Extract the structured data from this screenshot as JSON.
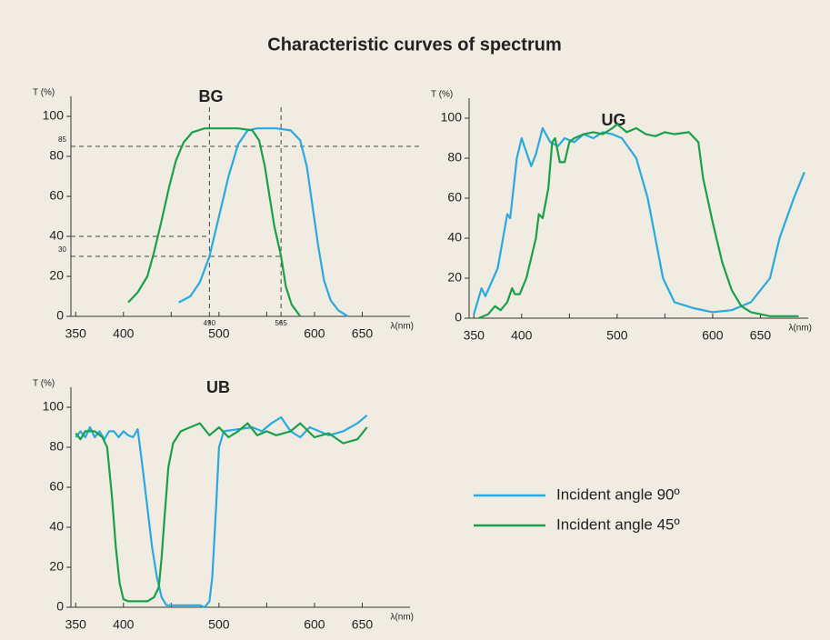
{
  "title": "Characteristic curves of spectrum",
  "chart_data": [
    {
      "type": "line",
      "title": "BG",
      "xlabel": "λ(nm)",
      "ylabel": "T (%)",
      "xlim": [
        345,
        700
      ],
      "ylim": [
        0,
        110
      ],
      "xticks": [
        350,
        400,
        500,
        600,
        650
      ],
      "xminor_ticks": [
        450,
        550
      ],
      "yticks": [
        0,
        20,
        40,
        60,
        80,
        100
      ],
      "reference_lines": [
        {
          "axis": "x",
          "value": 490,
          "printed": true
        },
        {
          "axis": "x",
          "value": 565,
          "printed": true
        },
        {
          "axis": "y",
          "value": 85,
          "printed": true,
          "x_end": 710
        },
        {
          "axis": "y",
          "value": 40,
          "printed": false,
          "x_end": 490
        },
        {
          "axis": "y",
          "value": 30,
          "printed": true,
          "x_end": 565
        }
      ],
      "series": [
        {
          "name": "Incident angle 90º",
          "color": "#29a9e0",
          "x": [
            458,
            470,
            480,
            490,
            500,
            510,
            520,
            530,
            540,
            560,
            575,
            585,
            592,
            598,
            604,
            610,
            617,
            625,
            635
          ],
          "values": [
            7,
            10,
            17,
            30,
            50,
            70,
            86,
            93,
            94,
            94,
            93,
            88,
            75,
            55,
            35,
            18,
            8,
            3,
            0
          ]
        },
        {
          "name": "Incident angle 45º",
          "color": "#1aa049",
          "x": [
            405,
            415,
            425,
            432,
            440,
            448,
            455,
            463,
            472,
            485,
            520,
            535,
            542,
            548,
            553,
            558,
            565,
            570,
            576,
            585
          ],
          "values": [
            7,
            12,
            20,
            32,
            48,
            65,
            78,
            87,
            92,
            94,
            94,
            93,
            88,
            75,
            60,
            45,
            30,
            15,
            6,
            0
          ]
        }
      ]
    },
    {
      "type": "line",
      "title": "UG",
      "xlabel": "λ(nm)",
      "ylabel": "T (%)",
      "xlim": [
        345,
        700
      ],
      "ylim": [
        0,
        110
      ],
      "xticks": [
        350,
        400,
        500,
        600,
        650
      ],
      "xminor_ticks": [
        450,
        550
      ],
      "yticks": [
        0,
        20,
        40,
        60,
        80,
        100
      ],
      "series": [
        {
          "color": "#29a9e0",
          "x": [
            350,
            358,
            362,
            375,
            385,
            388,
            395,
            400,
            410,
            415,
            422,
            430,
            438,
            445,
            455,
            465,
            475,
            485,
            495,
            505,
            520,
            532,
            548,
            560,
            580,
            600,
            620,
            640,
            660,
            670,
            685,
            696
          ],
          "values": [
            2,
            15,
            11,
            25,
            52,
            50,
            80,
            90,
            76,
            82,
            95,
            88,
            86,
            90,
            88,
            92,
            90,
            93,
            92,
            90,
            80,
            60,
            20,
            8,
            5,
            3,
            4,
            8,
            20,
            40,
            60,
            73
          ]
        },
        {
          "color": "#1aa049",
          "x": [
            355,
            365,
            372,
            378,
            385,
            390,
            393,
            398,
            405,
            415,
            418,
            422,
            428,
            432,
            435,
            440,
            445,
            450,
            455,
            465,
            475,
            485,
            495,
            500,
            510,
            520,
            530,
            540,
            550,
            560,
            575,
            585,
            590,
            600,
            610,
            620,
            630,
            640,
            660,
            690
          ],
          "values": [
            0,
            2,
            6,
            4,
            8,
            15,
            12,
            12,
            20,
            40,
            52,
            50,
            65,
            88,
            90,
            78,
            78,
            88,
            90,
            92,
            93,
            92,
            95,
            97,
            93,
            95,
            92,
            91,
            93,
            92,
            93,
            88,
            70,
            48,
            28,
            14,
            6,
            3,
            1,
            1
          ]
        }
      ]
    },
    {
      "type": "line",
      "title": "UB",
      "xlabel": "λ(nm)",
      "ylabel": "T (%)",
      "xlim": [
        345,
        700
      ],
      "ylim": [
        0,
        110
      ],
      "xticks": [
        350,
        400,
        500,
        600,
        650
      ],
      "xminor_ticks": [
        450,
        550
      ],
      "yticks": [
        0,
        20,
        40,
        60,
        80,
        100
      ],
      "series": [
        {
          "color": "#29a9e0",
          "x": [
            350,
            355,
            360,
            365,
            370,
            375,
            380,
            385,
            390,
            395,
            400,
            405,
            410,
            415,
            420,
            425,
            430,
            435,
            440,
            445,
            460,
            480,
            485,
            490,
            493,
            497,
            500,
            505,
            520,
            535,
            545,
            555,
            565,
            575,
            585,
            595,
            605,
            615,
            630,
            645,
            655
          ],
          "values": [
            85,
            88,
            85,
            90,
            85,
            88,
            84,
            88,
            88,
            85,
            88,
            86,
            85,
            89,
            70,
            50,
            30,
            15,
            5,
            1,
            1,
            1,
            0,
            3,
            15,
            50,
            80,
            88,
            89,
            90,
            88,
            92,
            95,
            88,
            85,
            90,
            88,
            86,
            88,
            92,
            96
          ]
        },
        {
          "color": "#1aa049",
          "x": [
            350,
            355,
            360,
            370,
            378,
            383,
            388,
            392,
            396,
            400,
            405,
            415,
            425,
            432,
            437,
            440,
            443,
            447,
            452,
            460,
            470,
            480,
            490,
            500,
            510,
            520,
            530,
            540,
            550,
            560,
            575,
            585,
            600,
            615,
            630,
            645,
            655
          ],
          "values": [
            87,
            84,
            88,
            88,
            85,
            80,
            55,
            30,
            12,
            4,
            3,
            3,
            3,
            5,
            10,
            25,
            45,
            70,
            82,
            88,
            90,
            92,
            86,
            90,
            85,
            88,
            92,
            86,
            88,
            86,
            88,
            92,
            85,
            87,
            82,
            84,
            90
          ]
        }
      ]
    }
  ]
}
